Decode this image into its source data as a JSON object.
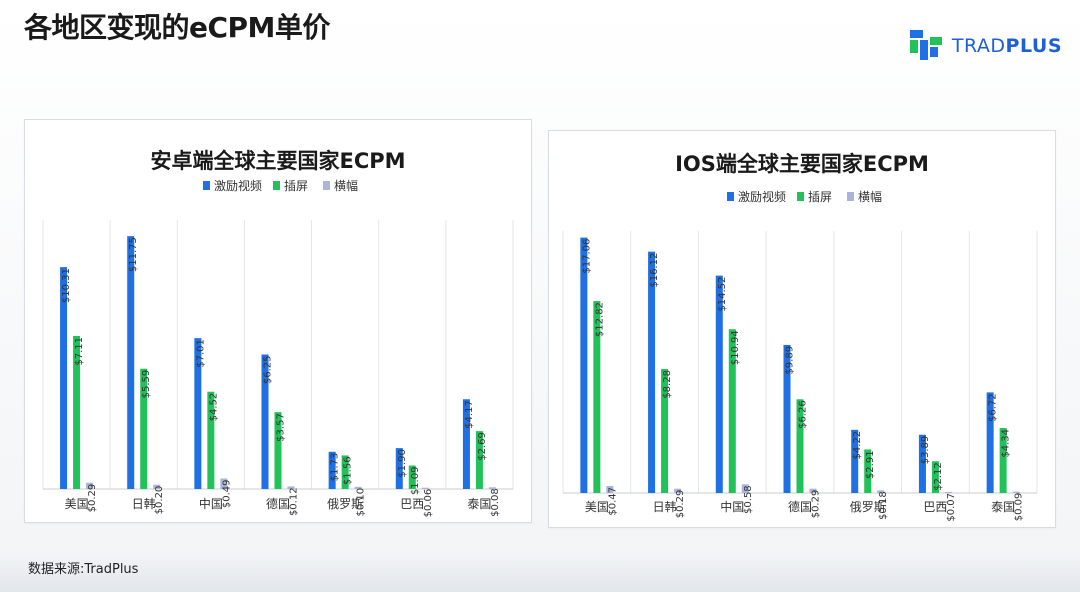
{
  "slide": {
    "title": "各地区变现的eCPM单价",
    "source": "数据来源:TradPlus",
    "brand": {
      "name_part1": "TRAD",
      "name_part2": "PLUS",
      "logo_icon": "tradplus-logo-icon"
    }
  },
  "colors": {
    "series": [
      "#1f6fe5",
      "#22c25a",
      "#a9b6d9"
    ],
    "grid": "#e3e6ea",
    "axis_text": "#333333"
  },
  "chart_data": [
    {
      "type": "bar",
      "title": "安卓端全球主要国家ECPM",
      "xlabel": "",
      "ylabel": "",
      "ylim": [
        0,
        12.5
      ],
      "grid": true,
      "legend_position": "top-center",
      "categories": [
        "美国",
        "日韩",
        "中国",
        "德国",
        "俄罗斯",
        "巴西",
        "泰国"
      ],
      "series": [
        {
          "name": "激励视频",
          "values": [
            10.31,
            11.75,
            7.01,
            6.25,
            1.73,
            1.9,
            4.17
          ],
          "labels": [
            "$10.31",
            "$11.75",
            "$7.01",
            "$6.25",
            "$1.73",
            "$1.90",
            "$4.17"
          ]
        },
        {
          "name": "插屏",
          "values": [
            7.11,
            5.59,
            4.52,
            3.57,
            1.56,
            1.09,
            2.69
          ],
          "labels": [
            "$7.11",
            "$5.59",
            "$4.52",
            "$3.57",
            "$1.56",
            "$1.09",
            "$2.69"
          ]
        },
        {
          "name": "横幅",
          "values": [
            0.29,
            0.2,
            0.49,
            0.12,
            0.1,
            0.06,
            0.08
          ],
          "labels": [
            "$0.29",
            "$0.20",
            "$0.49",
            "$0.12",
            "$0.10",
            "$0.06",
            "$0.08"
          ]
        }
      ]
    },
    {
      "type": "bar",
      "title": "IOS端全球主要国家ECPM",
      "xlabel": "",
      "ylabel": "",
      "ylim": [
        0,
        17.5
      ],
      "grid": true,
      "legend_position": "top-center",
      "categories": [
        "美国",
        "日韩",
        "中国",
        "德国",
        "俄罗斯",
        "巴西",
        "泰国"
      ],
      "series": [
        {
          "name": "激励视频",
          "values": [
            17.06,
            16.12,
            14.52,
            9.89,
            4.22,
            3.89,
            6.72
          ],
          "labels": [
            "$17.06",
            "$16.12",
            "$14.52",
            "$9.89",
            "$4.22",
            "$3.89",
            "$6.72"
          ]
        },
        {
          "name": "插屏",
          "values": [
            12.82,
            8.28,
            10.94,
            6.26,
            2.91,
            2.12,
            4.34
          ],
          "labels": [
            "$12.82",
            "$8.28",
            "$10.94",
            "$6.26",
            "$2.91",
            "$2.12",
            "$4.34"
          ]
        },
        {
          "name": "横幅",
          "values": [
            0.47,
            0.29,
            0.58,
            0.29,
            0.18,
            0.07,
            0.09
          ],
          "labels": [
            "$0.47",
            "$0.29",
            "$0.58",
            "$0.29",
            "$0.18",
            "$0.07",
            "$0.09"
          ]
        }
      ]
    }
  ]
}
